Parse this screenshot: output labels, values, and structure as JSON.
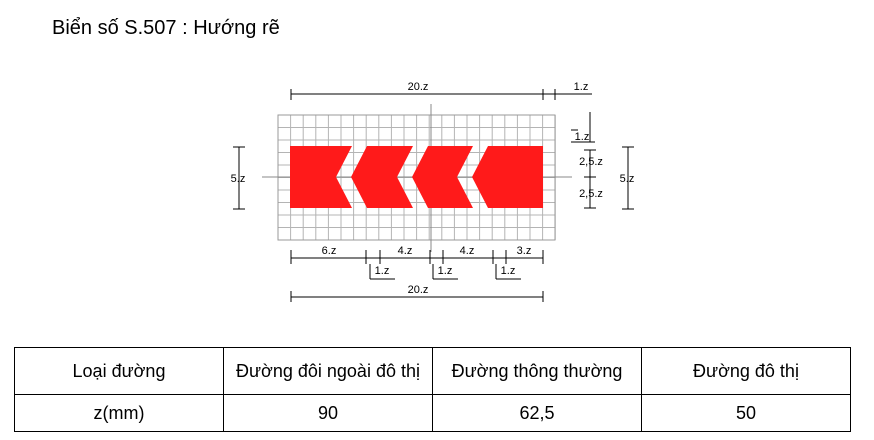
{
  "title": "Biển số S.507 : Hướng rẽ",
  "colors": {
    "sign_red": "#ff1a1a",
    "grid": "#b4b4b4",
    "ink": "#000000",
    "background": "#ffffff"
  },
  "dimensions": {
    "top_total": "20.z",
    "top_right_gap": "1.z",
    "right_top_gap": "1.z",
    "right_upper": "2,5.z",
    "right_lower": "2,5.z",
    "right_total": "5.z",
    "left_height": "5.z",
    "bottom_seg_1": "6.z",
    "bottom_seg_2": "4.z",
    "bottom_seg_3": "4.z",
    "bottom_seg_4": "3.z",
    "gap_1": "1.z",
    "gap_2": "1.z",
    "gap_3": "1.z",
    "bottom_total": "20.z"
  },
  "table": {
    "headers": [
      "Loại đường",
      "Đường đôi ngoài đô thị",
      "Đường thông thường",
      "Đường đô thị"
    ],
    "row_label": "z(mm)",
    "values": [
      "90",
      "62,5",
      "50"
    ]
  }
}
